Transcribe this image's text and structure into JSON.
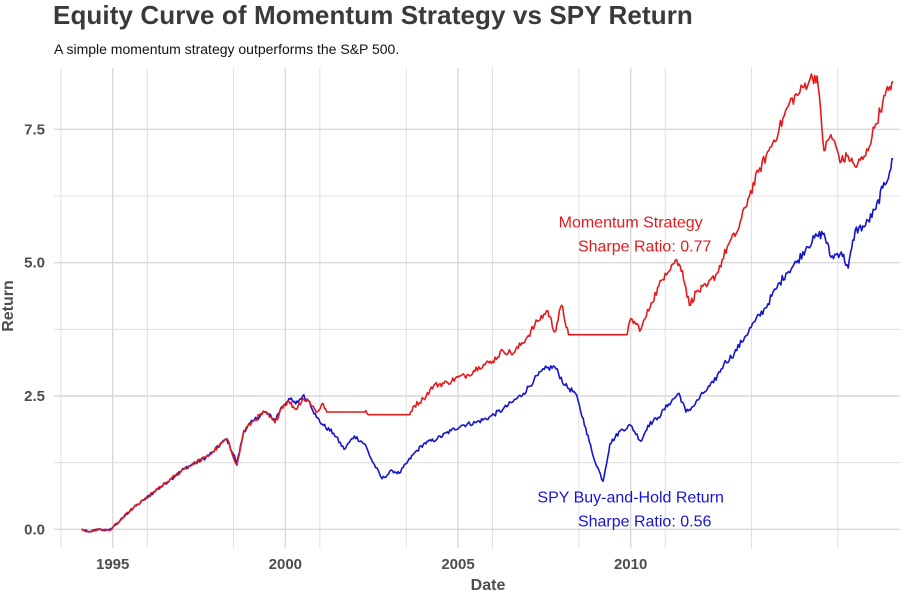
{
  "colors": {
    "momentum": "#e41a1c",
    "spy": "#1515d0",
    "grid": "#d9d9d9",
    "text": "#4d4d4d"
  },
  "chart_data": {
    "type": "line",
    "title": "Equity Curve of Momentum Strategy vs SPY Return",
    "subtitle": "A simple momentum strategy outperforms the S&P 500.",
    "xlabel": "Date",
    "ylabel": "Return",
    "xlim": [
      1993.3,
      2017.8
    ],
    "ylim": [
      -0.35,
      8.65
    ],
    "xticks": [
      1995,
      2000,
      2005,
      2010
    ],
    "xtick_labels": [
      "1995",
      "2000",
      "2005",
      "2010"
    ],
    "yticks": [
      0,
      2.5,
      5,
      7.5
    ],
    "ytick_labels": [
      "0.0",
      "2.5",
      "5.0",
      "7.5"
    ],
    "grid": true,
    "legend": "none",
    "annotations": [
      {
        "series": "Momentum Strategy",
        "lines": [
          "Momentum Strategy",
          "Sharpe Ratio: 0.77"
        ],
        "x": 2010.0,
        "y": 5.1
      },
      {
        "series": "SPY Buy-and-Hold Return",
        "lines": [
          "SPY Buy-and-Hold Return",
          "Sharpe Ratio: 0.56"
        ],
        "x": 2010.0,
        "y": 0.5
      }
    ],
    "series": [
      {
        "name": "Momentum Strategy",
        "color": "#e41a1c",
        "x": [
          1994.1,
          1994.3,
          1994.6,
          1994.9,
          1995.2,
          1995.5,
          1995.9,
          1996.3,
          1996.7,
          1997.1,
          1997.4,
          1997.7,
          1997.9,
          1998.3,
          1998.6,
          1998.8,
          1999.1,
          1999.4,
          1999.7,
          1999.9,
          2000.1,
          2000.3,
          2000.5,
          2000.7,
          2000.9,
          2001.1,
          2001.2,
          2002.3,
          2002.4,
          2003.6,
          2003.7,
          2004.0,
          2004.3,
          2004.7,
          2005.0,
          2005.3,
          2005.6,
          2006.0,
          2006.3,
          2006.6,
          2007.0,
          2007.3,
          2007.6,
          2007.8,
          2008.0,
          2008.2,
          2009.9,
          2010.0,
          2010.3,
          2010.6,
          2011.0,
          2011.3,
          2011.5,
          2011.7,
          2011.9,
          2012.2,
          2012.5,
          2012.8,
          2013.1,
          2013.4,
          2013.7,
          2014.0,
          2014.3,
          2014.6,
          2014.9,
          2015.2,
          2015.4,
          2015.6,
          2015.8,
          2016.1,
          2016.3,
          2016.5,
          2016.8,
          2017.1,
          2017.3,
          2017.5,
          2017.6
        ],
        "y": [
          0.0,
          -0.05,
          0.0,
          -0.02,
          0.15,
          0.35,
          0.55,
          0.75,
          0.95,
          1.15,
          1.25,
          1.35,
          1.45,
          1.7,
          1.2,
          1.85,
          2.05,
          2.2,
          2.0,
          2.3,
          2.4,
          2.25,
          2.45,
          2.4,
          2.2,
          2.35,
          2.2,
          2.2,
          2.15,
          2.15,
          2.3,
          2.45,
          2.7,
          2.75,
          2.85,
          2.9,
          3.05,
          3.15,
          3.35,
          3.3,
          3.6,
          3.9,
          4.1,
          3.7,
          4.2,
          3.65,
          3.65,
          3.95,
          3.75,
          4.25,
          4.8,
          5.05,
          4.85,
          4.2,
          4.45,
          4.55,
          4.8,
          5.3,
          5.6,
          6.2,
          6.7,
          7.1,
          7.5,
          8.0,
          8.2,
          8.45,
          8.5,
          7.1,
          7.4,
          6.9,
          7.0,
          6.8,
          7.0,
          7.6,
          8.0,
          8.3,
          8.4
        ]
      },
      {
        "name": "SPY Buy-and-Hold Return",
        "color": "#1515d0",
        "x": [
          1994.1,
          1994.3,
          1994.6,
          1994.9,
          1995.2,
          1995.5,
          1995.9,
          1996.3,
          1996.7,
          1997.1,
          1997.4,
          1997.7,
          1997.9,
          1998.3,
          1998.6,
          1998.8,
          1999.1,
          1999.4,
          1999.7,
          1999.9,
          2000.1,
          2000.3,
          2000.5,
          2000.7,
          2000.9,
          2001.1,
          2001.4,
          2001.7,
          2002.0,
          2002.3,
          2002.5,
          2002.8,
          2003.1,
          2003.3,
          2003.7,
          2004.0,
          2004.4,
          2004.8,
          2005.1,
          2005.5,
          2005.9,
          2006.3,
          2006.6,
          2006.9,
          2007.2,
          2007.5,
          2007.8,
          2008.1,
          2008.4,
          2008.7,
          2008.9,
          2009.2,
          2009.4,
          2009.7,
          2010.0,
          2010.3,
          2010.5,
          2010.8,
          2011.1,
          2011.4,
          2011.6,
          2011.8,
          2012.1,
          2012.4,
          2012.7,
          2013.0,
          2013.3,
          2013.6,
          2013.9,
          2014.2,
          2014.5,
          2014.8,
          2015.1,
          2015.4,
          2015.6,
          2015.8,
          2016.1,
          2016.3,
          2016.5,
          2016.8,
          2017.1,
          2017.3,
          2017.5,
          2017.6
        ],
        "y": [
          0.0,
          -0.05,
          0.0,
          -0.02,
          0.15,
          0.35,
          0.55,
          0.75,
          0.95,
          1.15,
          1.25,
          1.35,
          1.45,
          1.7,
          1.25,
          1.85,
          2.05,
          2.2,
          2.05,
          2.3,
          2.45,
          2.35,
          2.5,
          2.4,
          2.1,
          1.95,
          1.8,
          1.5,
          1.75,
          1.6,
          1.3,
          0.95,
          1.1,
          1.05,
          1.4,
          1.6,
          1.7,
          1.85,
          1.95,
          2.0,
          2.1,
          2.25,
          2.4,
          2.55,
          2.8,
          3.0,
          3.05,
          2.7,
          2.55,
          1.9,
          1.4,
          0.9,
          1.6,
          1.85,
          1.95,
          1.65,
          1.95,
          2.1,
          2.35,
          2.55,
          2.2,
          2.3,
          2.55,
          2.75,
          3.1,
          3.3,
          3.6,
          3.9,
          4.15,
          4.5,
          4.8,
          5.0,
          5.3,
          5.5,
          5.55,
          5.1,
          5.2,
          4.9,
          5.6,
          5.7,
          6.0,
          6.4,
          6.7,
          6.95
        ]
      }
    ]
  }
}
